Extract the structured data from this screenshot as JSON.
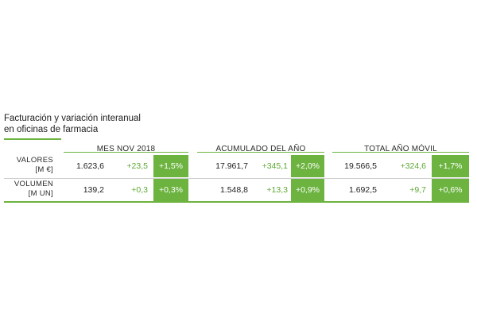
{
  "title": {
    "line1": "Facturación y variación interanual",
    "line2": "en oficinas de farmacia"
  },
  "columns": [
    "MES NOV 2018",
    "ACUMULADO DEL AÑO",
    "TOTAL AÑO MÓVIL"
  ],
  "rows": [
    {
      "label_line1": "VALORES",
      "label_line2": "[M €]",
      "groups": [
        {
          "value": "1.623,6",
          "change": "+23,5",
          "pct": "+1,5%"
        },
        {
          "value": "17.961,7",
          "change": "+345,1",
          "pct": "+2,0%"
        },
        {
          "value": "19.566,5",
          "change": "+324,6",
          "pct": "+1,7%"
        }
      ]
    },
    {
      "label_line1": "VOLUMEN",
      "label_line2": "[M UN]",
      "groups": [
        {
          "value": "139,2",
          "change": "+0,3",
          "pct": "+0,3%"
        },
        {
          "value": "1.548,8",
          "change": "+13,3",
          "pct": "+0,9%"
        },
        {
          "value": "1.692,5",
          "change": "+9,7",
          "pct": "+0,6%"
        }
      ]
    }
  ],
  "colors": {
    "accent_green": "#6cb33f",
    "change_text_green": "#5ea832"
  }
}
